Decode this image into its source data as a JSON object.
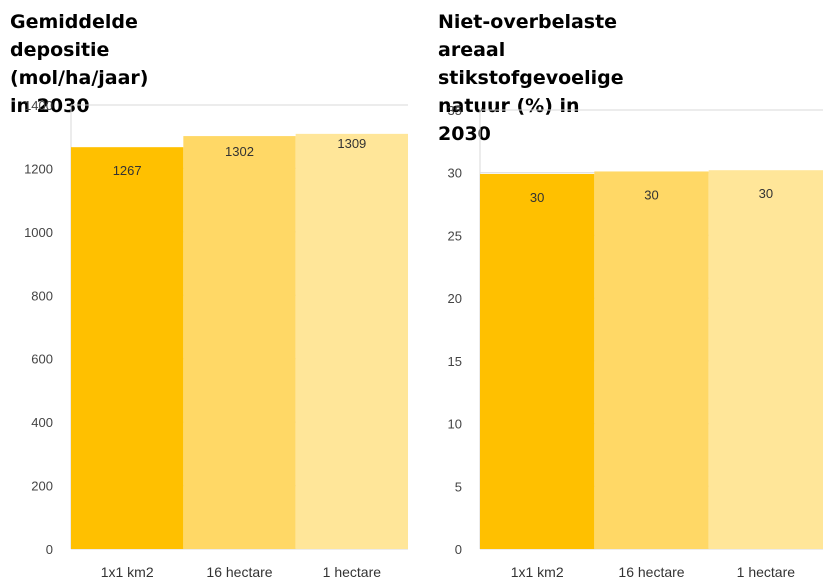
{
  "chart_data": [
    {
      "type": "bar",
      "title_lines": [
        "Gemiddelde depositie",
        "(mol/ha/jaar) in 2030"
      ],
      "categories": [
        "1x1 km2",
        "16 hectare",
        "1 hectare"
      ],
      "values": [
        1267,
        1302,
        1309
      ],
      "value_labels": [
        "1267",
        "1302",
        "1309"
      ],
      "bar_colors": [
        "#FFC000",
        "#FFD866",
        "#FFE699"
      ],
      "ylim": [
        0,
        1400
      ],
      "yticks": [
        0,
        200,
        400,
        600,
        800,
        1000,
        1200,
        1400
      ],
      "grid": true,
      "xlabel": "",
      "ylabel": ""
    },
    {
      "type": "bar",
      "title_lines": [
        "Niet-overbelaste areaal",
        "stikstofgevoelige natuur (%) in",
        "2030"
      ],
      "categories": [
        "1x1 km2",
        "16 hectare",
        "1 hectare"
      ],
      "values": [
        29.9,
        30.1,
        30.2
      ],
      "value_labels": [
        "30",
        "30",
        "30"
      ],
      "bar_colors": [
        "#FFC000",
        "#FFD866",
        "#FFE699"
      ],
      "ylim": [
        0,
        35
      ],
      "yticks": [
        0,
        5,
        10,
        15,
        20,
        25,
        30,
        35
      ],
      "grid": true,
      "xlabel": "",
      "ylabel": ""
    }
  ]
}
